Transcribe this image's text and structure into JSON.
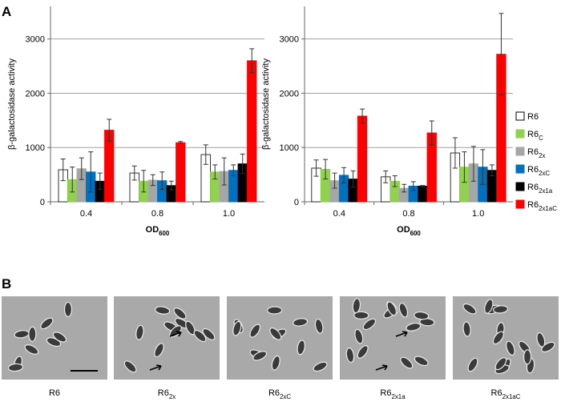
{
  "chart_data": [
    {
      "type": "bar",
      "ylabel": "β-galactosidase activity",
      "xlabel": "OD600",
      "categories": [
        "0.4",
        "0.8",
        "1.0"
      ],
      "series": [
        {
          "color": "#ffffff",
          "values": [
            590,
            530,
            870
          ],
          "errors": [
            200,
            130,
            180
          ]
        },
        {
          "color": "#92d050",
          "values": [
            410,
            380,
            550
          ],
          "errors": [
            230,
            200,
            130
          ]
        },
        {
          "color": "#a6a6a6",
          "values": [
            610,
            400,
            560
          ],
          "errors": [
            200,
            100,
            250
          ]
        },
        {
          "color": "#0070c0",
          "values": [
            550,
            390,
            580
          ],
          "errors": [
            370,
            160,
            100
          ]
        },
        {
          "color": "#000000",
          "values": [
            380,
            300,
            700
          ],
          "errors": [
            150,
            80,
            180
          ]
        },
        {
          "color": "#ff0000",
          "values": [
            1320,
            1090,
            2600
          ],
          "errors": [
            200,
            20,
            220
          ]
        }
      ],
      "ylim": [
        0,
        3600
      ],
      "yticks": [
        0,
        1000,
        2000,
        3000
      ],
      "grid": true
    },
    {
      "type": "bar",
      "ylabel": "β-galactosidase activity",
      "xlabel": "OD600",
      "categories": [
        "0.4",
        "0.8",
        "1.0"
      ],
      "series": [
        {
          "name": "R6",
          "color": "#ffffff",
          "values": [
            620,
            460,
            900
          ],
          "errors": [
            150,
            110,
            280
          ]
        },
        {
          "name": "R6C",
          "color": "#92d050",
          "values": [
            600,
            380,
            640
          ],
          "errors": [
            180,
            100,
            280
          ]
        },
        {
          "name": "R62x",
          "color": "#a6a6a6",
          "values": [
            390,
            250,
            700
          ],
          "errors": [
            140,
            70,
            320
          ]
        },
        {
          "name": "R62xC",
          "color": "#0070c0",
          "values": [
            490,
            290,
            640
          ],
          "errors": [
            140,
            80,
            320
          ]
        },
        {
          "name": "R62x1a",
          "color": "#000000",
          "values": [
            420,
            290,
            580
          ],
          "errors": [
            150,
            10,
            100
          ]
        },
        {
          "name": "R62x1aC",
          "color": "#ff0000",
          "values": [
            1580,
            1270,
            2720
          ],
          "errors": [
            130,
            220,
            750
          ]
        }
      ],
      "ylim": [
        0,
        3600
      ],
      "yticks": [
        0,
        1000,
        2000,
        3000
      ],
      "grid": true,
      "legend": "right"
    }
  ],
  "figure": {
    "panel_labels": [
      "A",
      "B"
    ],
    "micrographs": [
      {
        "label": "R6"
      },
      {
        "label": "R62x"
      },
      {
        "label": "R62xC"
      },
      {
        "label": "R62x1a"
      },
      {
        "label": "R62x1aC"
      }
    ]
  }
}
